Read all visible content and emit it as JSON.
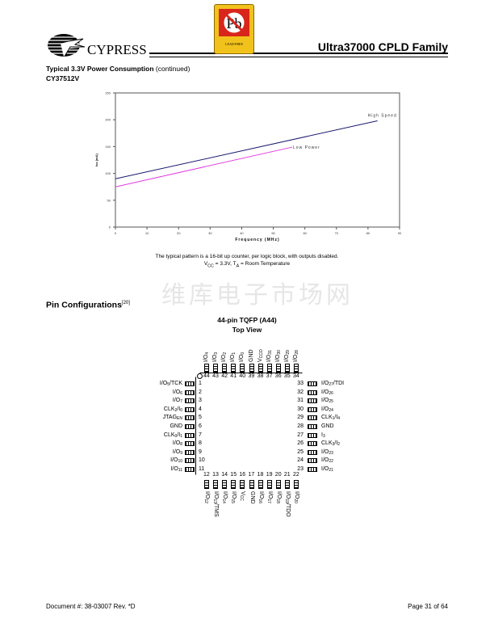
{
  "header": {
    "logo_text": "CYPRESS",
    "badge_text": "Pb",
    "badge_caption": "LEAD-FREE",
    "title": "Ultra37000 CPLD Family"
  },
  "section": {
    "title": "Typical 3.3V Power Consumption",
    "title_suffix": "(continued)",
    "part": "CY37512V"
  },
  "chart_data": {
    "type": "line",
    "xlabel": "Frequency (MHz)",
    "ylabel": "Icc (mA)",
    "xlim": [
      0,
      90
    ],
    "ylim": [
      0,
      250
    ],
    "xticks": [
      0,
      10,
      20,
      30,
      40,
      50,
      60,
      70,
      80,
      90
    ],
    "yticks": [
      0,
      50,
      100,
      150,
      200,
      250
    ],
    "grid": false,
    "series": [
      {
        "name": "High Speed",
        "color": "#1a1a6e",
        "x": [
          0,
          83
        ],
        "y": [
          90,
          198
        ]
      },
      {
        "name": "Low Power",
        "color": "#e040e0",
        "x": [
          0,
          56
        ],
        "y": [
          75,
          149
        ]
      }
    ]
  },
  "caption": {
    "line1": "The typical pattern is a 16-bit up counter, per logic block, with outputs disabled.",
    "line2_a": "V",
    "line2_sub1": "CC",
    "line2_b": " = 3.3V, T",
    "line2_sub2": "A",
    "line2_c": " = Room Temperature"
  },
  "pins_section": {
    "title": "Pin Configurations",
    "ref": "[20]",
    "watermark": "维库电子市场网",
    "package": "44-pin TQFP (A44)",
    "view": "Top View"
  },
  "pins": {
    "left": [
      {
        "n": 1,
        "m": "I/O",
        "s": "5",
        "t": "/TCK"
      },
      {
        "n": 2,
        "m": "I/O",
        "s": "6",
        "t": ""
      },
      {
        "n": 3,
        "m": "I/O",
        "s": "7",
        "t": ""
      },
      {
        "n": 4,
        "m": "CLK",
        "s": "2",
        "t": "/I",
        "s2": "0"
      },
      {
        "n": 5,
        "m": "JTAG",
        "s": "EN",
        "t": ""
      },
      {
        "n": 6,
        "m": "GND",
        "s": "",
        "t": ""
      },
      {
        "n": 7,
        "m": "CLK",
        "s": "0",
        "t": "/I",
        "s2": "1"
      },
      {
        "n": 8,
        "m": "I/O",
        "s": "8",
        "t": ""
      },
      {
        "n": 9,
        "m": "I/O",
        "s": "9",
        "t": ""
      },
      {
        "n": 10,
        "m": "I/O",
        "s": "10",
        "t": ""
      },
      {
        "n": 11,
        "m": "I/O",
        "s": "11",
        "t": ""
      }
    ],
    "right": [
      {
        "n": 33,
        "m": "I/O",
        "s": "27",
        "t": "/TDI"
      },
      {
        "n": 32,
        "m": "I/O",
        "s": "26",
        "t": ""
      },
      {
        "n": 31,
        "m": "I/O",
        "s": "25",
        "t": ""
      },
      {
        "n": 30,
        "m": "I/O",
        "s": "24",
        "t": ""
      },
      {
        "n": 29,
        "m": "CLK",
        "s": "1",
        "t": "/I",
        "s2": "4"
      },
      {
        "n": 28,
        "m": "GND",
        "s": "",
        "t": ""
      },
      {
        "n": 27,
        "m": "I",
        "s": "3",
        "t": ""
      },
      {
        "n": 26,
        "m": "CLK",
        "s": "3",
        "t": "/I",
        "s2": "2"
      },
      {
        "n": 25,
        "m": "I/O",
        "s": "23",
        "t": ""
      },
      {
        "n": 24,
        "m": "I/O",
        "s": "22",
        "t": ""
      },
      {
        "n": 23,
        "m": "I/O",
        "s": "21",
        "t": ""
      }
    ],
    "top": [
      {
        "n": 44,
        "m": "I/O",
        "s": "4",
        "t": ""
      },
      {
        "n": 43,
        "m": "I/O",
        "s": "3",
        "t": ""
      },
      {
        "n": 42,
        "m": "I/O",
        "s": "2",
        "t": ""
      },
      {
        "n": 41,
        "m": "I/O",
        "s": "1",
        "t": ""
      },
      {
        "n": 40,
        "m": "I/O",
        "s": "0",
        "t": ""
      },
      {
        "n": 39,
        "m": "GND",
        "s": "",
        "t": ""
      },
      {
        "n": 38,
        "m": "V",
        "s": "CCO",
        "t": ""
      },
      {
        "n": 37,
        "m": "I/O",
        "s": "31",
        "t": ""
      },
      {
        "n": 36,
        "m": "I/O",
        "s": "30",
        "t": ""
      },
      {
        "n": 35,
        "m": "I/O",
        "s": "29",
        "t": ""
      },
      {
        "n": 34,
        "m": "I/O",
        "s": "28",
        "t": ""
      }
    ],
    "bottom": [
      {
        "n": 12,
        "m": "I/O",
        "s": "12",
        "t": ""
      },
      {
        "n": 13,
        "m": "I/O",
        "s": "13",
        "t": "/TMS"
      },
      {
        "n": 14,
        "m": "I/O",
        "s": "14",
        "t": ""
      },
      {
        "n": 15,
        "m": "I/O",
        "s": "15",
        "t": ""
      },
      {
        "n": 16,
        "m": "V",
        "s": "CC",
        "t": ""
      },
      {
        "n": 17,
        "m": "GND",
        "s": "",
        "t": ""
      },
      {
        "n": 18,
        "m": "I/O",
        "s": "16",
        "t": ""
      },
      {
        "n": 19,
        "m": "I/O",
        "s": "17",
        "t": ""
      },
      {
        "n": 20,
        "m": "I/O",
        "s": "18",
        "t": ""
      },
      {
        "n": 21,
        "m": "I/O",
        "s": "19",
        "t": "/TDO"
      },
      {
        "n": 22,
        "m": "I/O",
        "s": "20",
        "t": ""
      }
    ]
  },
  "footer": {
    "document": "Document #: 38-03007  Rev. *D",
    "page": "Page 31 of 64"
  }
}
